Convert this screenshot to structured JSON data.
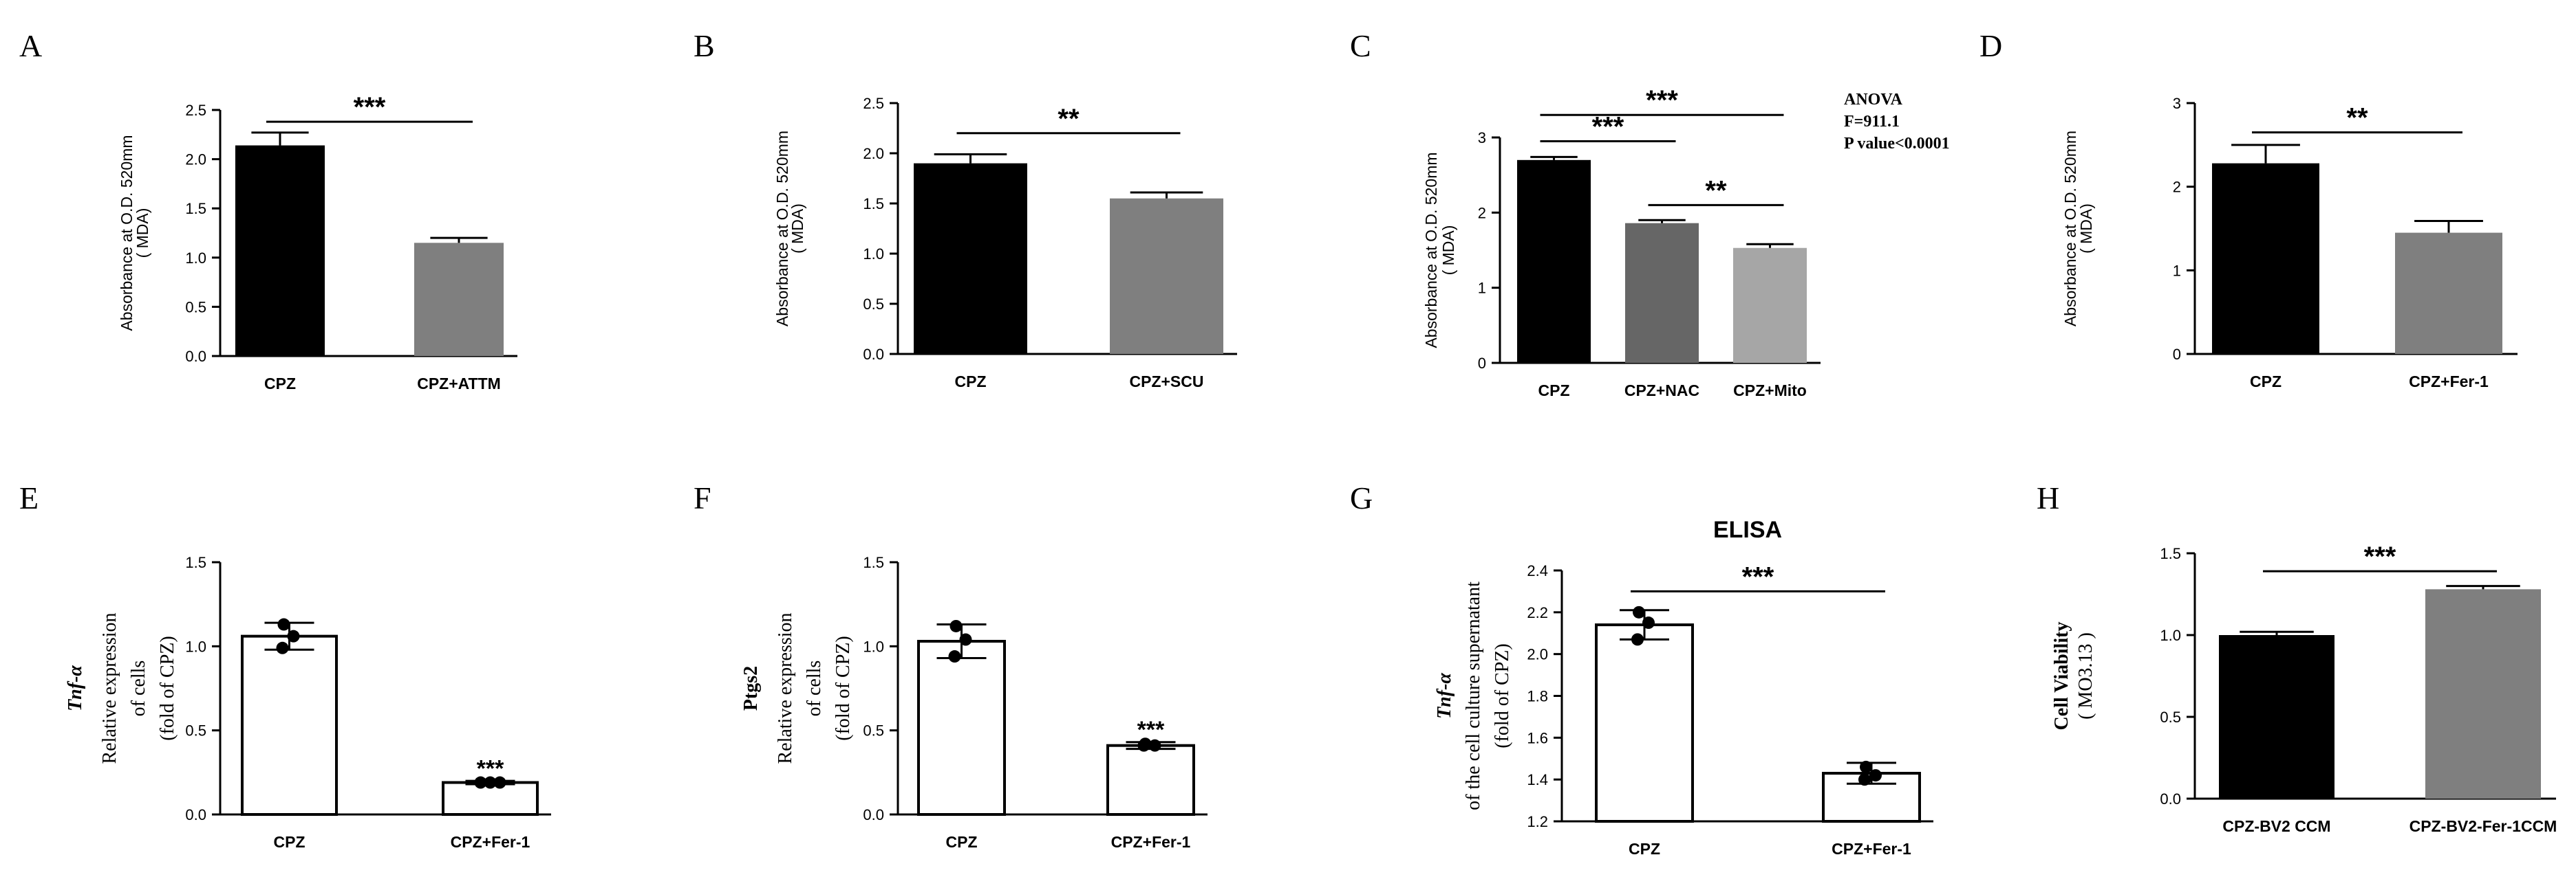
{
  "colors": {
    "black_bar": "#000000",
    "gray_bar": "#7f7f7f",
    "dark_gray_bar": "#666666",
    "light_gray_bar": "#a6a6a6",
    "white_bar": "#ffffff",
    "axis": "#000000"
  },
  "chart_data": [
    {
      "panel": "A",
      "type": "bar",
      "ylabel": [
        "Absorbance at O.D. 520mm",
        "( MDA)"
      ],
      "ylim": [
        0,
        2.5
      ],
      "yticks": [
        "0.0",
        "0.5",
        "1.0",
        "1.5",
        "2.0",
        "2.5"
      ],
      "categories": [
        "CPZ",
        "CPZ+ATTM"
      ],
      "values": [
        2.14,
        1.15
      ],
      "errors": [
        0.13,
        0.05
      ],
      "fills": [
        "black_bar",
        "gray_bar"
      ],
      "points": [],
      "brackets": [
        {
          "from": 0,
          "to": 1,
          "level": 2.38,
          "label": "***"
        }
      ]
    },
    {
      "panel": "B",
      "type": "bar",
      "ylabel": [
        "Absorbance at O.D. 520mm",
        "( MDA)"
      ],
      "ylim": [
        0,
        2.5
      ],
      "yticks": [
        "0.0",
        "0.5",
        "1.0",
        "1.5",
        "2.0",
        "2.5"
      ],
      "categories": [
        "CPZ",
        "CPZ+SCU"
      ],
      "values": [
        1.9,
        1.55
      ],
      "errors": [
        0.09,
        0.06
      ],
      "fills": [
        "black_bar",
        "gray_bar"
      ],
      "points": [],
      "brackets": [
        {
          "from": 0,
          "to": 1,
          "level": 2.2,
          "label": "**"
        }
      ]
    },
    {
      "panel": "C",
      "type": "bar",
      "ylabel": [
        "Absorbance at O.D. 520mm",
        "( MDA)"
      ],
      "ylim": [
        0,
        3
      ],
      "yticks": [
        "0",
        "1",
        "2",
        "3"
      ],
      "categories": [
        "CPZ",
        "CPZ+NAC",
        "CPZ+Mito"
      ],
      "values": [
        2.7,
        1.86,
        1.53
      ],
      "errors": [
        0.04,
        0.04,
        0.05
      ],
      "fills": [
        "black_bar",
        "dark_gray_bar",
        "light_gray_bar"
      ],
      "points": [],
      "brackets": [
        {
          "from": 0,
          "to": 2,
          "level": 3.3,
          "label": "***"
        },
        {
          "from": 0,
          "to": 1,
          "level": 2.95,
          "label": "***"
        },
        {
          "from": 1,
          "to": 2,
          "level": 2.1,
          "label": "**"
        }
      ],
      "annotation": [
        "ANOVA",
        "F=911.1",
        "P value<0.0001"
      ]
    },
    {
      "panel": "D",
      "type": "bar",
      "ylabel": [
        "Absorbance at O.D. 520mm",
        "( MDA)"
      ],
      "ylim": [
        0,
        3
      ],
      "yticks": [
        "0",
        "1",
        "2",
        "3"
      ],
      "categories": [
        "CPZ",
        "CPZ+Fer-1"
      ],
      "values": [
        2.28,
        1.45
      ],
      "errors": [
        0.22,
        0.14
      ],
      "fills": [
        "black_bar",
        "gray_bar"
      ],
      "points": [],
      "brackets": [
        {
          "from": 0,
          "to": 1,
          "level": 2.65,
          "label": "**"
        }
      ]
    },
    {
      "panel": "E",
      "type": "bar",
      "ylabel": [
        "Tnf-α",
        "Relative expression",
        "of cells",
        "(fold of CPZ)"
      ],
      "ylim": [
        0,
        1.5
      ],
      "yticks": [
        "0.0",
        "0.5",
        "1.0",
        "1.5"
      ],
      "categories": [
        "CPZ",
        "CPZ+Fer-1"
      ],
      "values": [
        1.06,
        0.19
      ],
      "errors": [
        0.08,
        0.01
      ],
      "fills": [
        "white_bar",
        "white_bar"
      ],
      "points": [
        [
          1.13,
          1.06,
          0.99
        ],
        [
          0.19,
          0.19,
          0.19
        ]
      ],
      "brackets": [],
      "stars": [
        {
          "index": 1,
          "level": 0.26,
          "label": "***"
        }
      ]
    },
    {
      "panel": "F",
      "type": "bar",
      "ylabel": [
        "Ptgs2",
        "Relative expression",
        "of cells",
        "(fold of CPZ)"
      ],
      "ylim": [
        0,
        1.5
      ],
      "yticks": [
        "0.0",
        "0.5",
        "1.0",
        "1.5"
      ],
      "categories": [
        "CPZ",
        "CPZ+Fer-1"
      ],
      "values": [
        1.03,
        0.41
      ],
      "errors": [
        0.1,
        0.02
      ],
      "fills": [
        "white_bar",
        "white_bar"
      ],
      "points": [
        [
          1.12,
          1.04,
          0.94
        ],
        [
          0.42,
          0.41,
          0.41
        ]
      ],
      "brackets": [],
      "stars": [
        {
          "index": 1,
          "level": 0.49,
          "label": "***"
        }
      ]
    },
    {
      "panel": "G",
      "type": "bar",
      "title": "ELISA",
      "ylabel": [
        "Tnf-α",
        "of the cell culture supernatant",
        "(fold of CPZ)"
      ],
      "ylim": [
        1.2,
        2.4
      ],
      "yticks": [
        "1.2",
        "1.4",
        "1.6",
        "1.8",
        "2.0",
        "2.2",
        "2.4"
      ],
      "categories": [
        "CPZ",
        "CPZ+Fer-1"
      ],
      "values": [
        2.14,
        1.43
      ],
      "errors": [
        0.07,
        0.05
      ],
      "fills": [
        "white_bar",
        "white_bar"
      ],
      "points": [
        [
          2.2,
          2.15,
          2.07
        ],
        [
          1.46,
          1.42,
          1.4
        ]
      ],
      "brackets": [
        {
          "from": 0,
          "to": 1,
          "level": 2.3,
          "label": "***"
        }
      ]
    },
    {
      "panel": "H",
      "type": "bar",
      "ylabel": [
        "Cell Viability",
        "( MO3.13 )"
      ],
      "ylim": [
        0,
        1.5
      ],
      "yticks": [
        "0.0",
        "0.5",
        "1.0",
        "1.5"
      ],
      "categories": [
        "CPZ-BV2 CCM",
        "CPZ-BV2-Fer-1CCM"
      ],
      "values": [
        1.0,
        1.28
      ],
      "errors": [
        0.02,
        0.02
      ],
      "fills": [
        "black_bar",
        "gray_bar"
      ],
      "points": [],
      "brackets": [
        {
          "from": 0,
          "to": 1,
          "level": 1.39,
          "label": "***"
        }
      ]
    }
  ]
}
